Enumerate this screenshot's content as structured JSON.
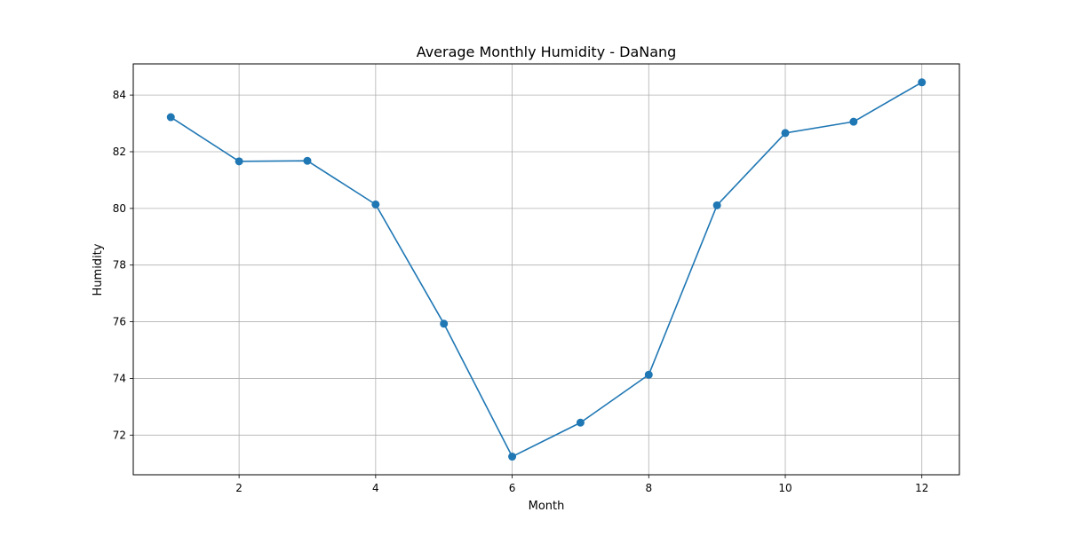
{
  "chart_data": {
    "type": "line",
    "title": "Average Monthly Humidity - DaNang",
    "xlabel": "Month",
    "ylabel": "Humidity",
    "x": [
      1,
      2,
      3,
      4,
      5,
      6,
      7,
      8,
      9,
      10,
      11,
      12
    ],
    "series": [
      {
        "name": "",
        "values": [
          83.22,
          81.66,
          81.68,
          80.14,
          75.93,
          71.24,
          72.44,
          74.13,
          80.11,
          82.66,
          83.06,
          84.45
        ],
        "color": "#1f77b4",
        "marker": "circle"
      }
    ],
    "xlim": [
      0.45,
      12.55
    ],
    "ylim": [
      70.6,
      85.1
    ],
    "xticks": [
      2,
      4,
      6,
      8,
      10,
      12
    ],
    "yticks": [
      72,
      74,
      76,
      78,
      80,
      82,
      84
    ],
    "grid": true
  }
}
